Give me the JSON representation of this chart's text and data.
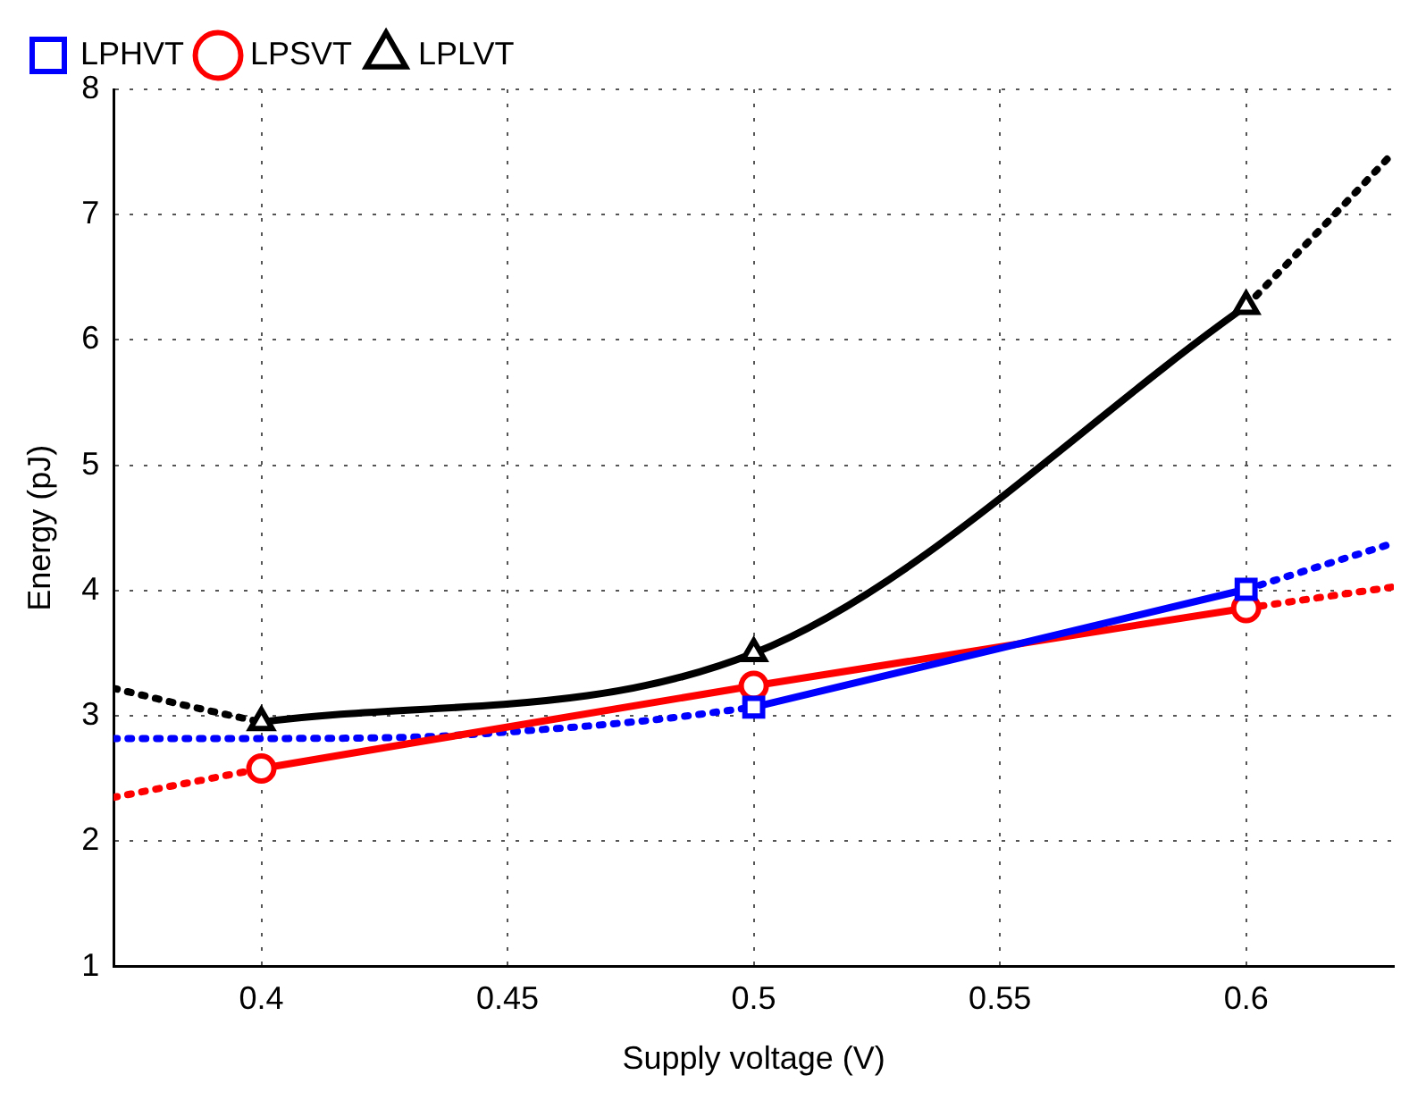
{
  "chart_data": {
    "type": "line",
    "xlabel": "Supply voltage (V)",
    "ylabel": "Energy (pJ)",
    "xlim": [
      0.37,
      0.63
    ],
    "ylim": [
      1,
      8
    ],
    "xticks": [
      0.4,
      0.45,
      0.5,
      0.55,
      0.6
    ],
    "yticks": [
      1,
      2,
      3,
      4,
      5,
      6,
      7,
      8
    ],
    "grid": true,
    "legend": "top left",
    "series": [
      {
        "name": "LPHVT",
        "color": "#0000ff",
        "marker": "square",
        "line_style": "solid",
        "x": [
          0.5,
          0.6
        ],
        "values": [
          3.07,
          4.01
        ]
      },
      {
        "name": "LPSVT",
        "color": "#ff0000",
        "marker": "circle",
        "line_style": "solid",
        "x": [
          0.4,
          0.5,
          0.6
        ],
        "values": [
          2.58,
          3.24,
          3.86
        ]
      },
      {
        "name": "LPLVT",
        "color": "#000000",
        "marker": "triangle",
        "line_style": "solid",
        "x": [
          0.4,
          0.5,
          0.6
        ],
        "values": [
          2.95,
          3.5,
          6.27
        ]
      },
      {
        "color": "#0000ff",
        "marker": "none",
        "line_style": "dotted",
        "x": [
          0.37,
          0.4,
          0.43,
          0.46,
          0.48,
          0.5
        ],
        "values": [
          2.82,
          2.82,
          2.83,
          2.9,
          2.97,
          3.07
        ]
      },
      {
        "color": "#0000ff",
        "marker": "none",
        "line_style": "dotted",
        "x": [
          0.6,
          0.63
        ],
        "values": [
          4.01,
          4.38
        ]
      },
      {
        "color": "#ff0000",
        "marker": "none",
        "line_style": "dotted",
        "x": [
          0.37,
          0.4
        ],
        "values": [
          2.35,
          2.58
        ]
      },
      {
        "color": "#ff0000",
        "marker": "none",
        "line_style": "dotted",
        "x": [
          0.6,
          0.63
        ],
        "values": [
          3.86,
          4.03
        ]
      },
      {
        "color": "#000000",
        "marker": "none",
        "line_style": "dotted",
        "x": [
          0.37,
          0.385,
          0.4
        ],
        "values": [
          3.22,
          3.08,
          2.95
        ]
      },
      {
        "color": "#000000",
        "marker": "none",
        "line_style": "dotted",
        "x": [
          0.6,
          0.615,
          0.63
        ],
        "values": [
          6.27,
          6.88,
          7.5
        ]
      }
    ]
  }
}
